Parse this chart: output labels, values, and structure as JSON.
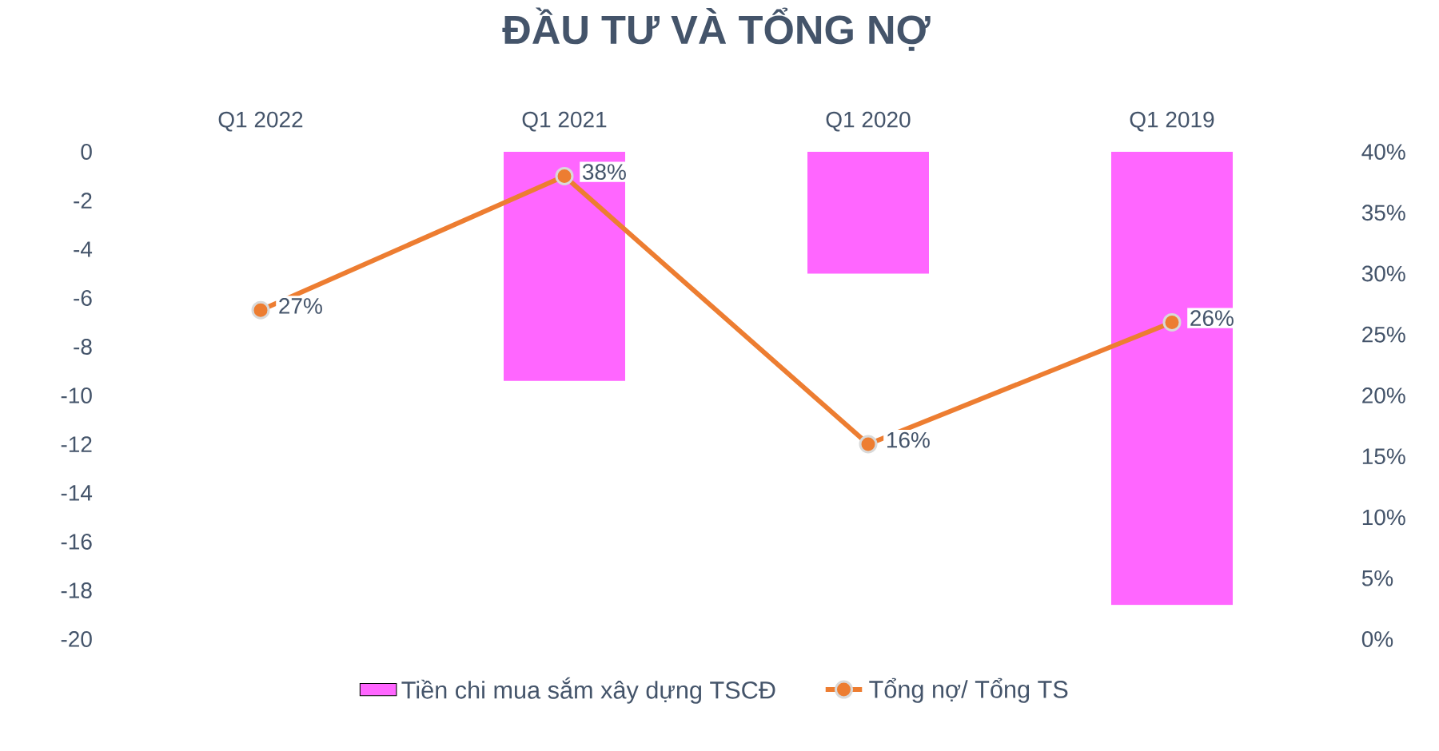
{
  "chart_data": {
    "type": "bar",
    "title": "ĐẦU TƯ VÀ TỔNG NỢ",
    "categories": [
      "Q1 2022",
      "Q1 2021",
      "Q1 2020",
      "Q1 2019"
    ],
    "series": [
      {
        "name": "Tiền chi mua sắm xây dựng TSCĐ",
        "color": "#ff66ff",
        "values": [
          0,
          -9.4,
          -5,
          -18.6
        ]
      },
      {
        "name": "Tổng nợ/ Tổng TS",
        "type": "line",
        "axis": "y2",
        "color": "#ed7d31",
        "marker": "circle",
        "values": [
          27,
          38,
          16,
          26
        ],
        "value_labels": [
          "27%",
          "38%",
          "16%",
          "26%"
        ]
      }
    ],
    "ylim": [
      -20,
      0
    ],
    "yticks": [
      0,
      -2,
      -4,
      -6,
      -8,
      -10,
      -12,
      -14,
      -16,
      -18,
      -20
    ],
    "y2lim": [
      0,
      40
    ],
    "y2ticks": [
      {
        "value": 0,
        "label": "0%"
      },
      {
        "value": 5,
        "label": "5%"
      },
      {
        "value": 10,
        "label": "10%"
      },
      {
        "value": 15,
        "label": "15%"
      },
      {
        "value": 20,
        "label": "20%"
      },
      {
        "value": 25,
        "label": "25%"
      },
      {
        "value": 30,
        "label": "30%"
      },
      {
        "value": 35,
        "label": "35%"
      },
      {
        "value": 40,
        "label": "40%"
      }
    ],
    "grid": false,
    "legend": "bottom"
  }
}
